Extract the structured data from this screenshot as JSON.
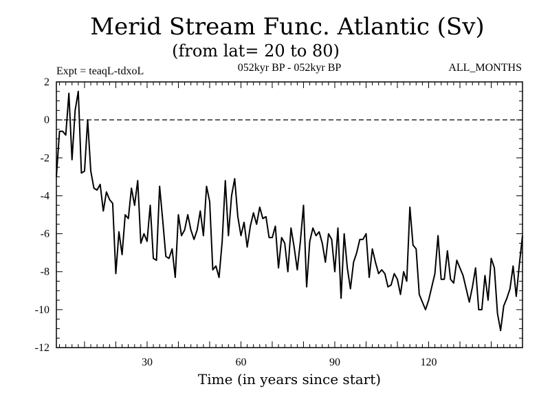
{
  "chart_data": {
    "type": "line",
    "title": "Merid Stream Func. Atlantic (Sv)",
    "subtitle": "(from lat= 20 to 80)",
    "left_label": "Expt = teaqL-tdxoL",
    "center_label": "052kyr BP - 052kyr BP",
    "right_label": "ALL_MONTHS",
    "xlabel": "Time (in years since start)",
    "ylabel": "",
    "xlim": [
      1,
      150
    ],
    "ylim": [
      -12,
      2
    ],
    "xticks": [
      30,
      60,
      90,
      120
    ],
    "yticks": [
      2,
      0,
      -2,
      -4,
      -6,
      -8,
      -10,
      -12
    ],
    "reference_line": 0,
    "grid": false,
    "series": [
      {
        "name": "Merid Stream Func. Atlantic",
        "x": [
          1,
          2,
          3,
          4,
          5,
          6,
          7,
          8,
          9,
          10,
          11,
          12,
          13,
          14,
          15,
          16,
          17,
          18,
          19,
          20,
          21,
          22,
          23,
          24,
          25,
          26,
          27,
          28,
          29,
          30,
          31,
          32,
          33,
          34,
          35,
          36,
          37,
          38,
          39,
          40,
          41,
          42,
          43,
          44,
          45,
          46,
          47,
          48,
          49,
          50,
          51,
          52,
          53,
          54,
          55,
          56,
          57,
          58,
          59,
          60,
          61,
          62,
          63,
          64,
          65,
          66,
          67,
          68,
          69,
          70,
          71,
          72,
          73,
          74,
          75,
          76,
          77,
          78,
          79,
          80,
          81,
          82,
          83,
          84,
          85,
          86,
          87,
          88,
          89,
          90,
          91,
          92,
          93,
          94,
          95,
          96,
          97,
          98,
          99,
          100,
          101,
          102,
          103,
          104,
          105,
          106,
          107,
          108,
          109,
          110,
          111,
          112,
          113,
          114,
          115,
          116,
          117,
          118,
          119,
          120,
          121,
          122,
          123,
          124,
          125,
          126,
          127,
          128,
          129,
          130,
          131,
          132,
          133,
          134,
          135,
          136,
          137,
          138,
          139,
          140,
          141,
          142,
          143,
          144,
          145,
          146,
          147,
          148,
          149,
          150
        ],
        "values": [
          -3.0,
          -0.6,
          -0.6,
          -0.8,
          1.4,
          -2.1,
          0.5,
          1.5,
          -2.8,
          -2.7,
          0.0,
          -2.7,
          -3.6,
          -3.7,
          -3.4,
          -4.8,
          -3.8,
          -4.2,
          -4.4,
          -8.1,
          -5.9,
          -7.1,
          -5.0,
          -5.2,
          -3.6,
          -4.5,
          -3.2,
          -6.5,
          -6.0,
          -6.4,
          -4.5,
          -7.3,
          -7.4,
          -3.5,
          -5.3,
          -7.2,
          -7.3,
          -6.8,
          -8.3,
          -5.0,
          -6.1,
          -5.8,
          -5.0,
          -5.8,
          -6.3,
          -5.8,
          -4.8,
          -6.1,
          -3.5,
          -4.3,
          -7.9,
          -7.7,
          -8.3,
          -6.4,
          -3.2,
          -6.1,
          -4.0,
          -3.1,
          -5.1,
          -6.1,
          -5.4,
          -6.7,
          -5.6,
          -4.9,
          -5.5,
          -4.6,
          -5.2,
          -5.1,
          -6.2,
          -6.2,
          -5.6,
          -7.8,
          -6.2,
          -6.5,
          -8.0,
          -5.7,
          -6.7,
          -7.9,
          -6.4,
          -4.5,
          -8.8,
          -6.4,
          -5.7,
          -6.1,
          -5.9,
          -6.5,
          -7.5,
          -6.0,
          -6.3,
          -8.0,
          -5.7,
          -9.4,
          -6.0,
          -7.8,
          -8.9,
          -7.5,
          -7.0,
          -6.3,
          -6.3,
          -6.0,
          -8.3,
          -6.8,
          -7.5,
          -8.1,
          -7.9,
          -8.1,
          -8.8,
          -8.7,
          -8.1,
          -8.4,
          -9.2,
          -8.0,
          -8.5,
          -4.6,
          -6.6,
          -6.8,
          -9.2,
          -9.6,
          -10.0,
          -9.5,
          -8.8,
          -8.1,
          -6.1,
          -8.4,
          -8.4,
          -6.9,
          -8.4,
          -8.6,
          -7.4,
          -7.8,
          -8.2,
          -8.9,
          -9.6,
          -8.8,
          -7.8,
          -10.0,
          -10.0,
          -8.2,
          -9.5,
          -7.3,
          -7.8,
          -10.2,
          -11.1,
          -9.8,
          -9.4,
          -8.9,
          -7.7,
          -9.3,
          -7.6,
          -6.1
        ]
      }
    ]
  }
}
